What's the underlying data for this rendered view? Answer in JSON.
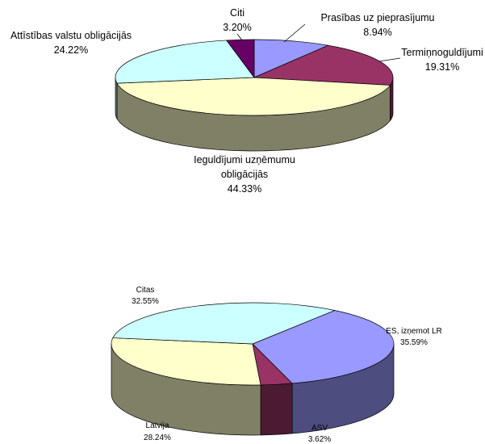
{
  "chart_data": [
    {
      "type": "pie",
      "style": "3d",
      "slices": [
        {
          "label": "Prasības uz pieprasījumu",
          "value": 8.94,
          "value_label": "8.94%",
          "color": "#9999FF"
        },
        {
          "label": "Termiņnoguldījumi",
          "value": 19.31,
          "value_label": "19.31%",
          "color": "#993366"
        },
        {
          "label": "Ieguldījumi uzņēmumu obligācijās",
          "value": 44.33,
          "value_label": "44.33%",
          "color": "#FFFFCC"
        },
        {
          "label": "Attīstības valstu obligācijās",
          "value": 24.22,
          "value_label": "24.22%",
          "color": "#CCFFFF"
        },
        {
          "label": "Citi",
          "value": 3.2,
          "value_label": "3.20%",
          "color": "#660066"
        }
      ]
    },
    {
      "type": "pie",
      "style": "3d",
      "slices": [
        {
          "label": "ES, izņemot LR",
          "value": 35.59,
          "value_label": "35.59%",
          "color": "#9999FF"
        },
        {
          "label": "ASV",
          "value": 3.62,
          "value_label": "3.62%",
          "color": "#993366"
        },
        {
          "label": "Latvija",
          "value": 28.24,
          "value_label": "28.24%",
          "color": "#FFFFCC"
        },
        {
          "label": "Citas",
          "value": 32.55,
          "value_label": "32.55%",
          "color": "#CCFFFF"
        }
      ]
    }
  ]
}
